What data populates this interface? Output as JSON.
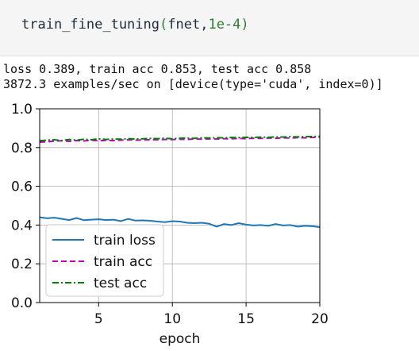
{
  "code": {
    "func": "train_fine_tuning",
    "open_paren": "(",
    "arg1": "fnet",
    "comma": ",",
    "arg2": "1e-4",
    "close_paren": ")"
  },
  "output": {
    "line1": "loss 0.389, train acc 0.853, test acc 0.858",
    "line2": "3872.3 examples/sec on [device(type='cuda', index=0)]"
  },
  "chart_data": {
    "type": "line",
    "xlabel": "epoch",
    "xlim": [
      1,
      20
    ],
    "ylim": [
      0,
      1
    ],
    "xticks": [
      5,
      10,
      15,
      20
    ],
    "yticks": [
      0.0,
      0.2,
      0.4,
      0.6,
      0.8,
      1.0
    ],
    "xtick_labels": [
      "5",
      "10",
      "15",
      "20"
    ],
    "ytick_labels": [
      "0.0",
      "0.2",
      "0.4",
      "0.6",
      "0.8",
      "1.0"
    ],
    "grid": true,
    "legend_position": "lower-left",
    "x": [
      1.0,
      1.5,
      2.0,
      2.5,
      3.0,
      3.5,
      4.0,
      4.5,
      5.0,
      5.5,
      6.0,
      6.5,
      7.0,
      7.5,
      8.0,
      8.5,
      9.0,
      9.5,
      10.0,
      10.5,
      11.0,
      11.5,
      12.0,
      12.5,
      13.0,
      13.5,
      14.0,
      14.5,
      15.0,
      15.5,
      16.0,
      16.5,
      17.0,
      17.5,
      18.0,
      18.5,
      19.0,
      19.5,
      20.0
    ],
    "series": [
      {
        "name": "train loss",
        "color": "#1f77b4",
        "dash": "solid",
        "values": [
          0.44,
          0.435,
          0.438,
          0.432,
          0.426,
          0.436,
          0.425,
          0.428,
          0.43,
          0.426,
          0.428,
          0.42,
          0.432,
          0.423,
          0.424,
          0.422,
          0.418,
          0.415,
          0.42,
          0.418,
          0.412,
          0.41,
          0.412,
          0.407,
          0.392,
          0.405,
          0.4,
          0.41,
          0.402,
          0.398,
          0.4,
          0.396,
          0.405,
          0.398,
          0.4,
          0.392,
          0.396,
          0.394,
          0.389
        ]
      },
      {
        "name": "train acc",
        "color": "#bf00bf",
        "dash": "dashed",
        "values": [
          0.828,
          0.83,
          0.833,
          0.835,
          0.832,
          0.836,
          0.834,
          0.838,
          0.835,
          0.837,
          0.836,
          0.838,
          0.84,
          0.838,
          0.839,
          0.841,
          0.84,
          0.842,
          0.841,
          0.843,
          0.842,
          0.844,
          0.843,
          0.845,
          0.844,
          0.846,
          0.845,
          0.847,
          0.846,
          0.848,
          0.847,
          0.849,
          0.848,
          0.85,
          0.849,
          0.851,
          0.85,
          0.852,
          0.853
        ]
      },
      {
        "name": "test acc",
        "color": "#008000",
        "dash": "dashdot",
        "values": [
          0.835,
          0.838,
          0.84,
          0.836,
          0.842,
          0.838,
          0.843,
          0.84,
          0.845,
          0.842,
          0.844,
          0.843,
          0.846,
          0.844,
          0.845,
          0.847,
          0.846,
          0.848,
          0.845,
          0.848,
          0.849,
          0.847,
          0.85,
          0.849,
          0.851,
          0.85,
          0.852,
          0.851,
          0.853,
          0.852,
          0.854,
          0.853,
          0.855,
          0.854,
          0.856,
          0.855,
          0.856,
          0.857,
          0.858
        ]
      }
    ]
  }
}
